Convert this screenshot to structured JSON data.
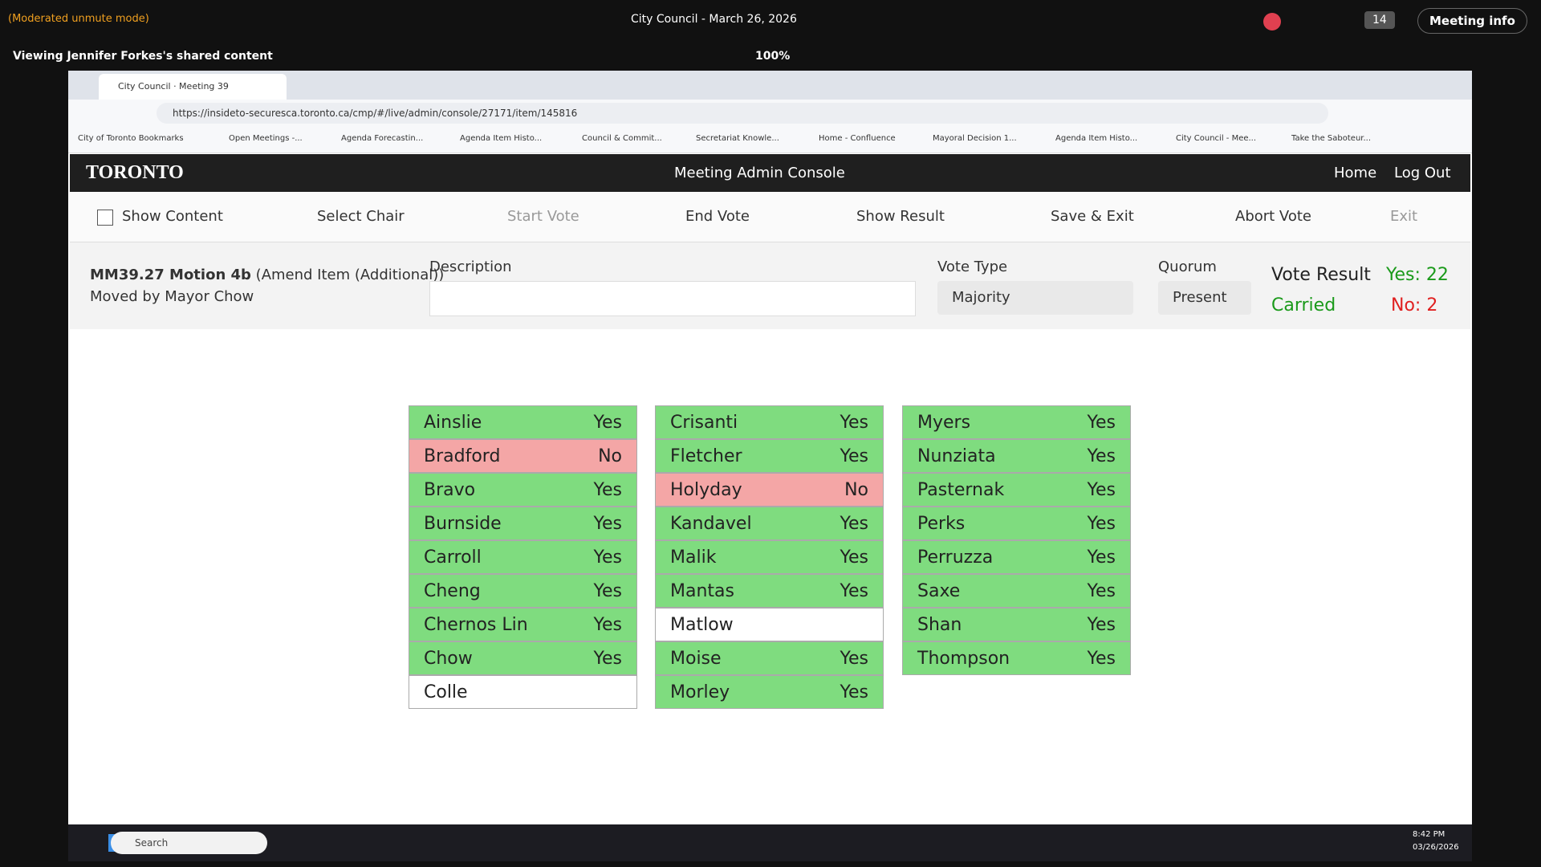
{
  "meeting_bar": {
    "mode": "(Moderated unmute mode)",
    "title": "City Council - March 26, 2026",
    "participants": "14",
    "info": "Meeting info"
  },
  "share_bar": {
    "viewing": "Viewing Jennifer Forkes's shared content",
    "zoom": "100%"
  },
  "browser": {
    "tab": "City Council · Meeting 39",
    "url": "https://insideto-securesca.toronto.ca/cmp/#/live/admin/console/27171/item/145816",
    "bookmarks": [
      "City of Toronto Bookmarks",
      "Open Meetings -...",
      "Agenda Forecastin...",
      "Agenda Item Histo...",
      "Council & Commit...",
      "Secretariat Knowle...",
      "Home - Confluence",
      "Mayoral Decision 1...",
      "Agenda Item Histo...",
      "City Council - Mee...",
      "Take the Saboteur..."
    ]
  },
  "app": {
    "logo": "TORONTO",
    "title": "Meeting Admin Console",
    "nav": [
      "Home",
      "Log Out"
    ],
    "toolbar": [
      "Show Content",
      "Select Chair",
      "Start Vote",
      "End Vote",
      "Show Result",
      "Save & Exit",
      "Abort Vote",
      "Exit"
    ]
  },
  "item": {
    "id": "MM39.27 Motion 4b",
    "kind": "(Amend Item (Additional))",
    "moved": "Moved by Mayor Chow",
    "description_label": "Description",
    "vote_type_label": "Vote Type",
    "vote_type": "Majority",
    "quorum_label": "Quorum",
    "quorum": "Present",
    "result_label": "Vote Result",
    "result": "Carried",
    "yes": "Yes: 22",
    "no": "No: 2"
  },
  "votes": [
    [
      {
        "name": "Ainslie",
        "vote": "Yes",
        "color": "#7fdc7f"
      },
      {
        "name": "Bradford",
        "vote": "No",
        "color": "#f4a6a6"
      },
      {
        "name": "Bravo",
        "vote": "Yes",
        "color": "#7fdc7f"
      },
      {
        "name": "Burnside",
        "vote": "Yes",
        "color": "#7fdc7f"
      },
      {
        "name": "Carroll",
        "vote": "Yes",
        "color": "#7fdc7f"
      },
      {
        "name": "Cheng",
        "vote": "Yes",
        "color": "#7fdc7f"
      },
      {
        "name": "Chernos Lin",
        "vote": "Yes",
        "color": "#7fdc7f"
      },
      {
        "name": "Chow",
        "vote": "Yes",
        "color": "#7fdc7f"
      },
      {
        "name": "Colle",
        "color": "#ffffff"
      }
    ],
    [
      {
        "name": "Crisanti",
        "vote": "Yes",
        "color": "#7fdc7f"
      },
      {
        "name": "Fletcher",
        "vote": "Yes",
        "color": "#7fdc7f"
      },
      {
        "name": "Holyday",
        "vote": "No",
        "color": "#f4a6a6"
      },
      {
        "name": "Kandavel",
        "vote": "Yes",
        "color": "#7fdc7f"
      },
      {
        "name": "Malik",
        "vote": "Yes",
        "color": "#7fdc7f"
      },
      {
        "name": "Mantas",
        "vote": "Yes",
        "color": "#7fdc7f"
      },
      {
        "name": "Matlow",
        "color": "#ffffff"
      },
      {
        "name": "Moise",
        "vote": "Yes",
        "color": "#7fdc7f"
      },
      {
        "name": "Morley",
        "vote": "Yes",
        "color": "#7fdc7f"
      }
    ],
    [
      {
        "name": "Myers",
        "vote": "Yes",
        "color": "#7fdc7f"
      },
      {
        "name": "Nunziata",
        "vote": "Yes",
        "color": "#7fdc7f"
      },
      {
        "name": "Pasternak",
        "vote": "Yes",
        "color": "#7fdc7f"
      },
      {
        "name": "Perks",
        "vote": "Yes",
        "color": "#7fdc7f"
      },
      {
        "name": "Perruzza",
        "vote": "Yes",
        "color": "#7fdc7f"
      },
      {
        "name": "Saxe",
        "vote": "Yes",
        "color": "#7fdc7f"
      },
      {
        "name": "Shan",
        "vote": "Yes",
        "color": "#7fdc7f"
      },
      {
        "name": "Thompson",
        "vote": "Yes",
        "color": "#7fdc7f"
      }
    ]
  ],
  "taskbar": {
    "search": "Search",
    "time": "8:42 PM",
    "date": "03/26/2026"
  }
}
